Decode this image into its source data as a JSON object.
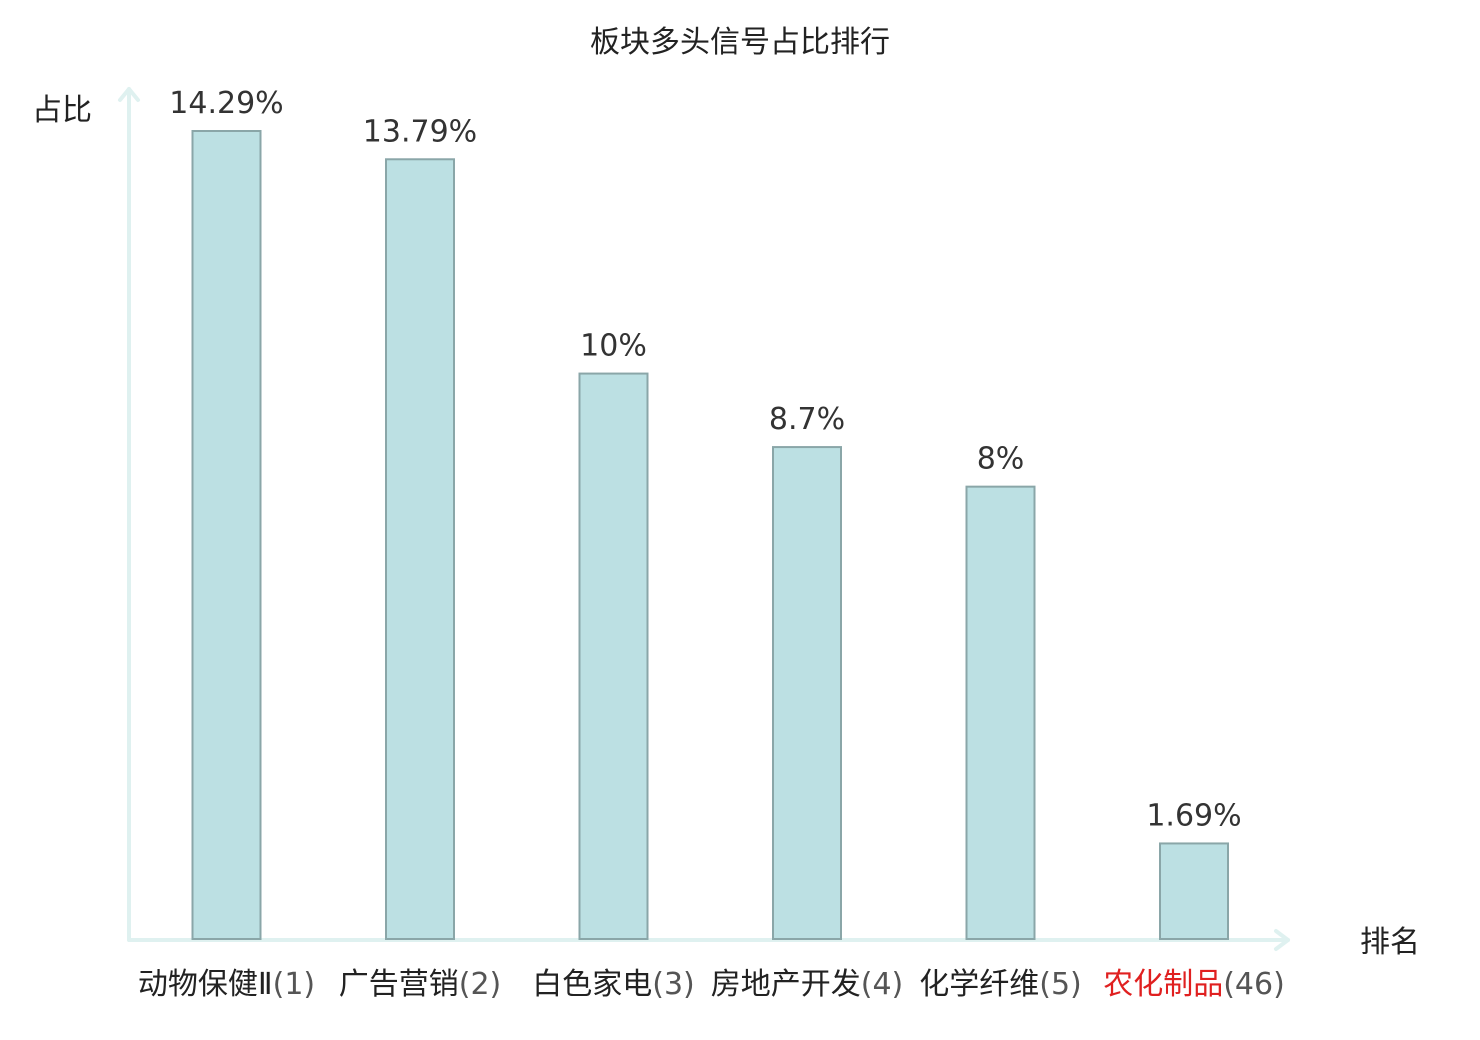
{
  "chart_data": {
    "type": "bar",
    "title": "板块多头信号占比排行",
    "ylabel": "占比",
    "xlabel": "排名",
    "ylim": [
      0,
      15
    ],
    "categories": [
      {
        "name": "动物保健Ⅱ",
        "rank": "(1)",
        "highlight": false
      },
      {
        "name": "广告营销",
        "rank": "(2)",
        "highlight": false
      },
      {
        "name": "白色家电",
        "rank": "(3)",
        "highlight": false
      },
      {
        "name": "房地产开发",
        "rank": "(4)",
        "highlight": false
      },
      {
        "name": "化学纤维",
        "rank": "(5)",
        "highlight": false
      },
      {
        "name": "农化制品",
        "rank": "(46)",
        "highlight": true
      }
    ],
    "values": [
      14.29,
      13.79,
      10,
      8.7,
      8,
      1.69
    ],
    "value_labels": [
      "14.29%",
      "13.79%",
      "10%",
      "8.7%",
      "8%",
      "1.69%"
    ],
    "grid": false,
    "colors": {
      "bar": "#bce0e3",
      "bar_edge": "#8aa6a8",
      "axis": "#dff1f0",
      "highlight": "#e02020"
    }
  }
}
